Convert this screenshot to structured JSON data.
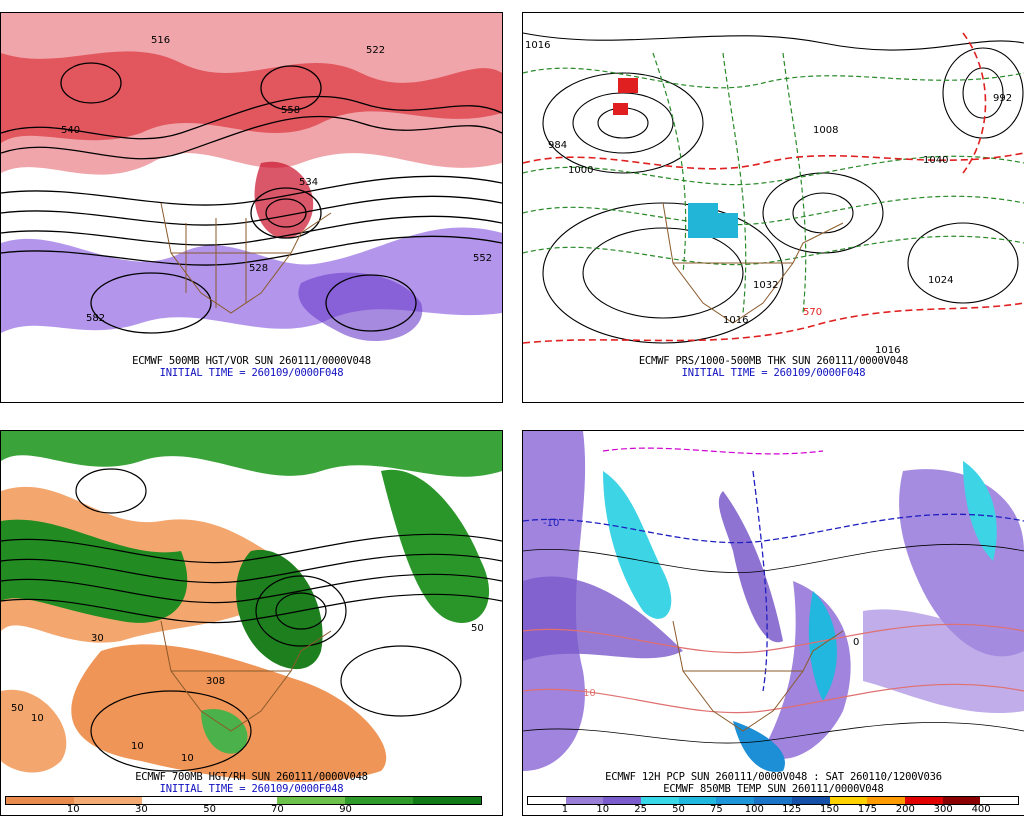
{
  "panels": [
    {
      "caption_line1": "ECMWF 500MB HGT/VOR SUN 260111/0000V048",
      "caption_line2": "INITIAL TIME = 260109/0000F048",
      "labels": [
        "516",
        "534",
        "522",
        "528",
        "552",
        "582",
        "540",
        "558"
      ]
    },
    {
      "caption_line1": "ECMWF PRS/1000-500MB THK SUN 260111/0000V048",
      "caption_line2": "INITIAL TIME = 260109/0000F048",
      "labels": [
        "1016",
        "984",
        "1000",
        "1024",
        "1032",
        "1016",
        "1040",
        "992",
        "1008",
        "570",
        "1016"
      ]
    },
    {
      "caption_line1": "ECMWF 700MB HGT/RH SUN 260111/0000V048",
      "caption_line2": "INITIAL TIME = 260109/0000F048",
      "labels": [
        "10",
        "30",
        "50",
        "10",
        "10",
        "50",
        "308"
      ]
    },
    {
      "caption_line1": "ECMWF 12H PCP SUN 260111/0000V048 : SAT 260110/1200V036",
      "caption_line2": "ECMWF 850MB TEMP SUN 260111/0000V048",
      "labels": [
        "-10",
        "0",
        "10"
      ]
    }
  ],
  "rh_colorbar": {
    "ticks": [
      "10",
      "30",
      "50",
      "70",
      "90"
    ],
    "colors": [
      "#e98b4c",
      "#f3ab73",
      "#ffffff",
      "#ffffff",
      "#6cc24a",
      "#2e9a2a",
      "#117a17"
    ]
  },
  "pcp_colorbar": {
    "ticks": [
      "1",
      "10",
      "25",
      "50",
      "75",
      "100",
      "125",
      "150",
      "175",
      "200",
      "300",
      "400"
    ],
    "colors": [
      "#ffffff",
      "#9a7fd6",
      "#7b5ccc",
      "#38d8e8",
      "#21b8e0",
      "#1c96d8",
      "#1a75c8",
      "#1550a8",
      "#ffd100",
      "#ff9a00",
      "#e00000",
      "#8a0000",
      "#ffffff"
    ]
  }
}
